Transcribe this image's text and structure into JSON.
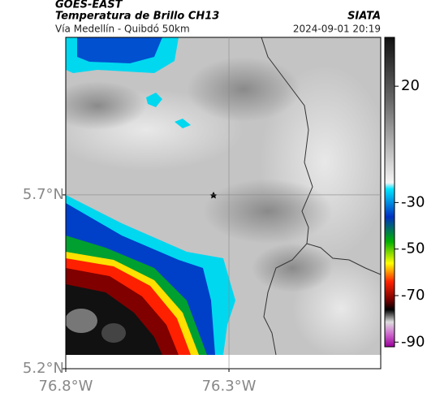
{
  "header": {
    "source": "GOES-EAST",
    "title": "Temperatura de Brillo CH13",
    "route": "Vía Medellín - Quibdó 50km",
    "agency": "SIATA",
    "datetime": "2024-09-01 20:19"
  },
  "map": {
    "lat_lim": [
      5.2,
      6.153
    ],
    "lon_lim": [
      -76.8,
      -75.835
    ],
    "lat_ticks": [
      {
        "value": 5.2,
        "label": "5.2°N"
      },
      {
        "value": 5.7,
        "label": "5.7°N"
      }
    ],
    "lon_ticks": [
      {
        "value": -76.8,
        "label": "76.8°W"
      },
      {
        "value": -76.3,
        "label": "76.3°W"
      }
    ],
    "grid": true
  },
  "colorbar": {
    "lim": [
      -92,
      41
    ],
    "ticks": [
      20,
      -30,
      -50,
      -70,
      -90
    ]
  }
}
